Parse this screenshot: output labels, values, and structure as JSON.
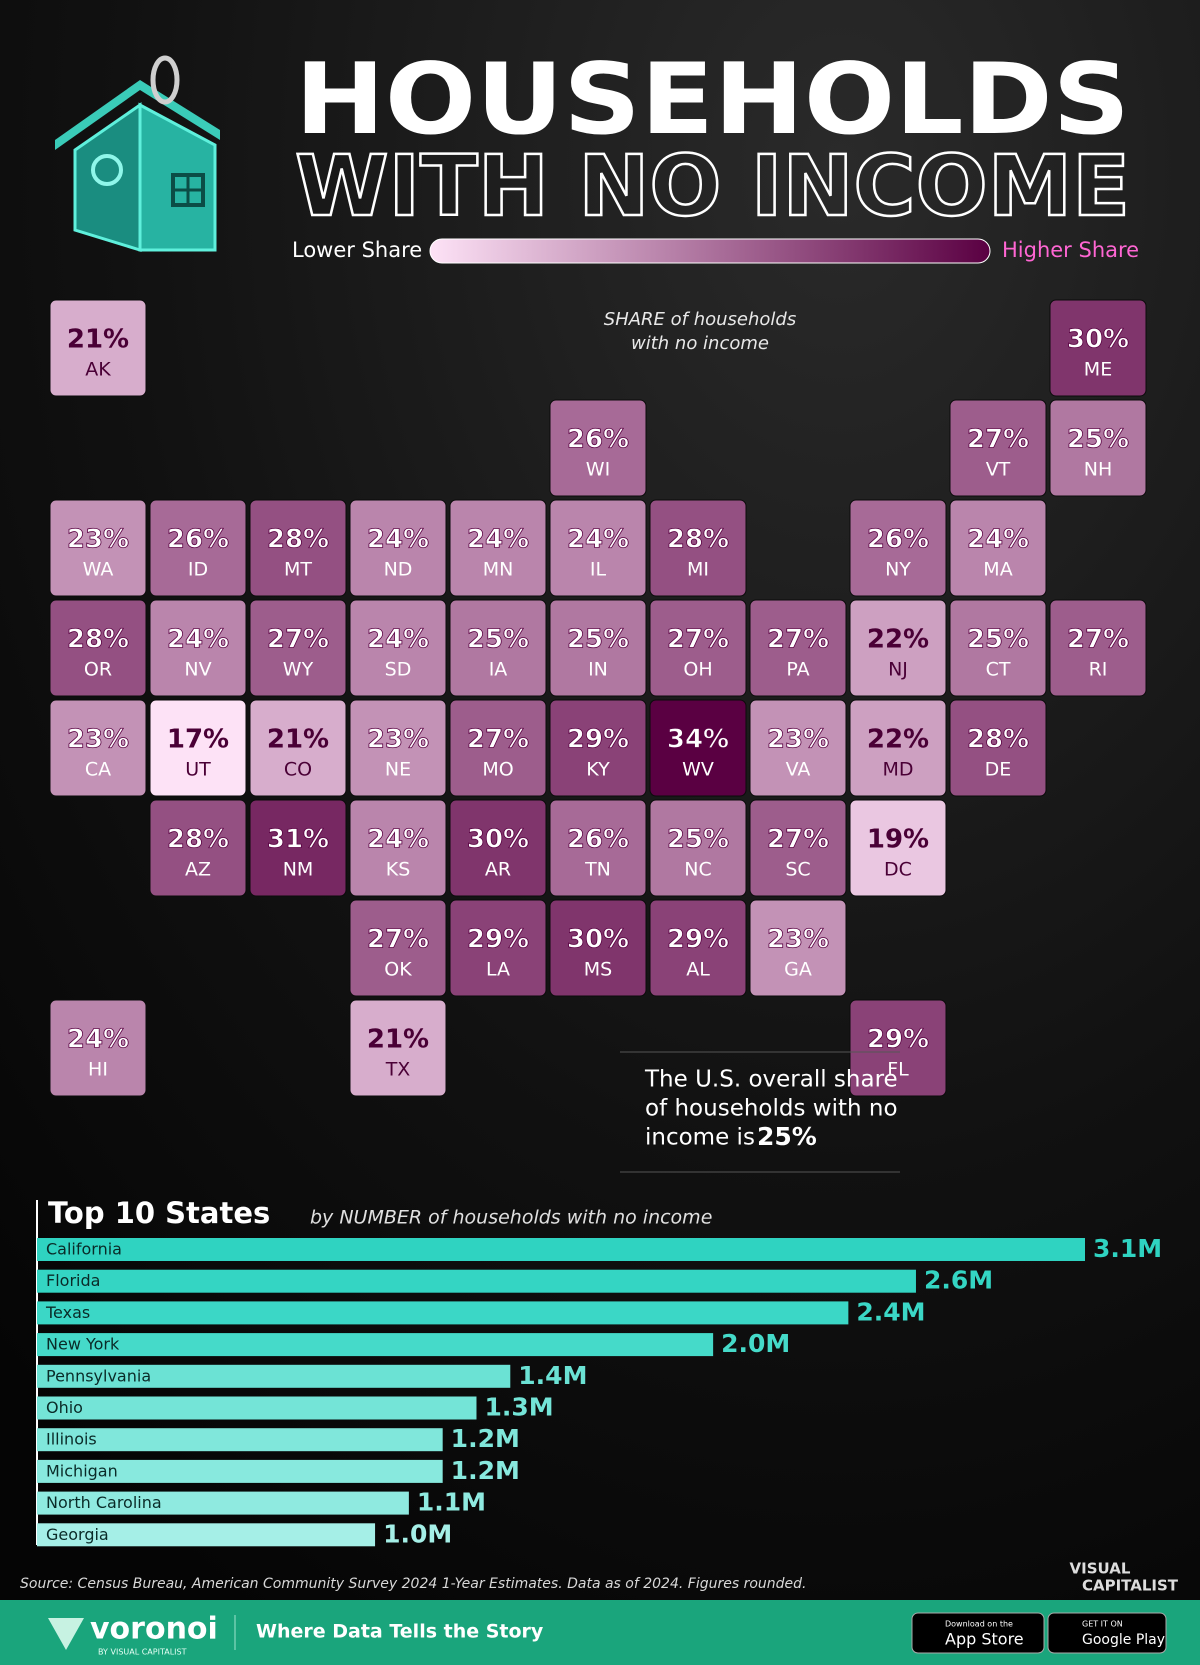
{
  "header": {
    "title_line1": "HOUSEHOLDS",
    "title_line2": "WITH NO INCOME",
    "legend_low": "Lower Share",
    "legend_high": "Higher Share"
  },
  "chart_data": [
    {
      "type": "tile-map",
      "annotation": [
        "SHARE of households",
        "with no income"
      ],
      "color_low": "#fde2f6",
      "color_high": "#5a0042",
      "categories": [
        "AK",
        "ME",
        "WI",
        "VT",
        "NH",
        "WA",
        "ID",
        "MT",
        "ND",
        "MN",
        "IL",
        "MI",
        "NY",
        "MA",
        "OR",
        "NV",
        "WY",
        "SD",
        "IA",
        "IN",
        "OH",
        "PA",
        "NJ",
        "CT",
        "RI",
        "CA",
        "UT",
        "CO",
        "NE",
        "MO",
        "KY",
        "WV",
        "VA",
        "MD",
        "DE",
        "AZ",
        "NM",
        "KS",
        "AR",
        "TN",
        "NC",
        "SC",
        "DC",
        "OK",
        "LA",
        "MS",
        "AL",
        "GA",
        "HI",
        "TX",
        "FL"
      ],
      "values": [
        21,
        30,
        26,
        27,
        25,
        23,
        26,
        28,
        24,
        24,
        24,
        28,
        26,
        24,
        28,
        24,
        27,
        24,
        25,
        25,
        27,
        27,
        22,
        25,
        27,
        23,
        17,
        21,
        23,
        27,
        29,
        34,
        23,
        22,
        28,
        28,
        31,
        24,
        30,
        26,
        25,
        27,
        19,
        27,
        29,
        30,
        29,
        23,
        24,
        21,
        29
      ],
      "value_labels": [
        "21%",
        "30%",
        "26%",
        "27%",
        "25%",
        "23%",
        "26%",
        "28%",
        "24%",
        "24%",
        "24%",
        "28%",
        "26%",
        "24%",
        "28%",
        "24%",
        "27%",
        "24%",
        "25%",
        "25%",
        "27%",
        "27%",
        "22%",
        "25%",
        "27%",
        "23%",
        "17%",
        "21%",
        "23%",
        "27%",
        "29%",
        "34%",
        "23%",
        "22%",
        "28%",
        "28%",
        "31%",
        "24%",
        "30%",
        "26%",
        "25%",
        "27%",
        "19%",
        "27%",
        "29%",
        "30%",
        "29%",
        "23%",
        "24%",
        "21%",
        "29%"
      ]
    },
    {
      "type": "bar",
      "title": "Top 10 States",
      "subtitle": "by NUMBER of households with no income",
      "categories": [
        "California",
        "Florida",
        "Texas",
        "New York",
        "Pennsylvania",
        "Ohio",
        "Illinois",
        "Michigan",
        "North Carolina",
        "Georgia"
      ],
      "values": [
        3.1,
        2.6,
        2.4,
        2.0,
        1.4,
        1.3,
        1.2,
        1.2,
        1.1,
        1.0
      ],
      "value_labels": [
        "3.1M",
        "2.6M",
        "2.4M",
        "2.0M",
        "1.4M",
        "1.3M",
        "1.2M",
        "1.2M",
        "1.1M",
        "1.0M"
      ],
      "colors": [
        "#2fd3c1",
        "#34d5c3",
        "#3bd7c6",
        "#45dac9",
        "#6be2d4",
        "#74e4d7",
        "#80e7db",
        "#88e9de",
        "#8feae0",
        "#a5efe7"
      ]
    }
  ],
  "note": {
    "lines": [
      "The U.S. overall share",
      "of households with no",
      "income is"
    ],
    "value_label": "25%"
  },
  "footer": {
    "source": "Source: Census Bureau, American Community Survey 2024 1-Year Estimates. Data as of 2024. Figures rounded.",
    "brand_line1": "VISUAL",
    "brand_line2": "CAPITALIST",
    "voronoi": "voronoi",
    "voronoi_by": "BY VISUAL CAPITALIST",
    "tagline": "Where Data Tells the Story",
    "appstore_small": "Download on the",
    "appstore": "App Store",
    "google_small": "GET IT ON",
    "google": "Google Play"
  }
}
